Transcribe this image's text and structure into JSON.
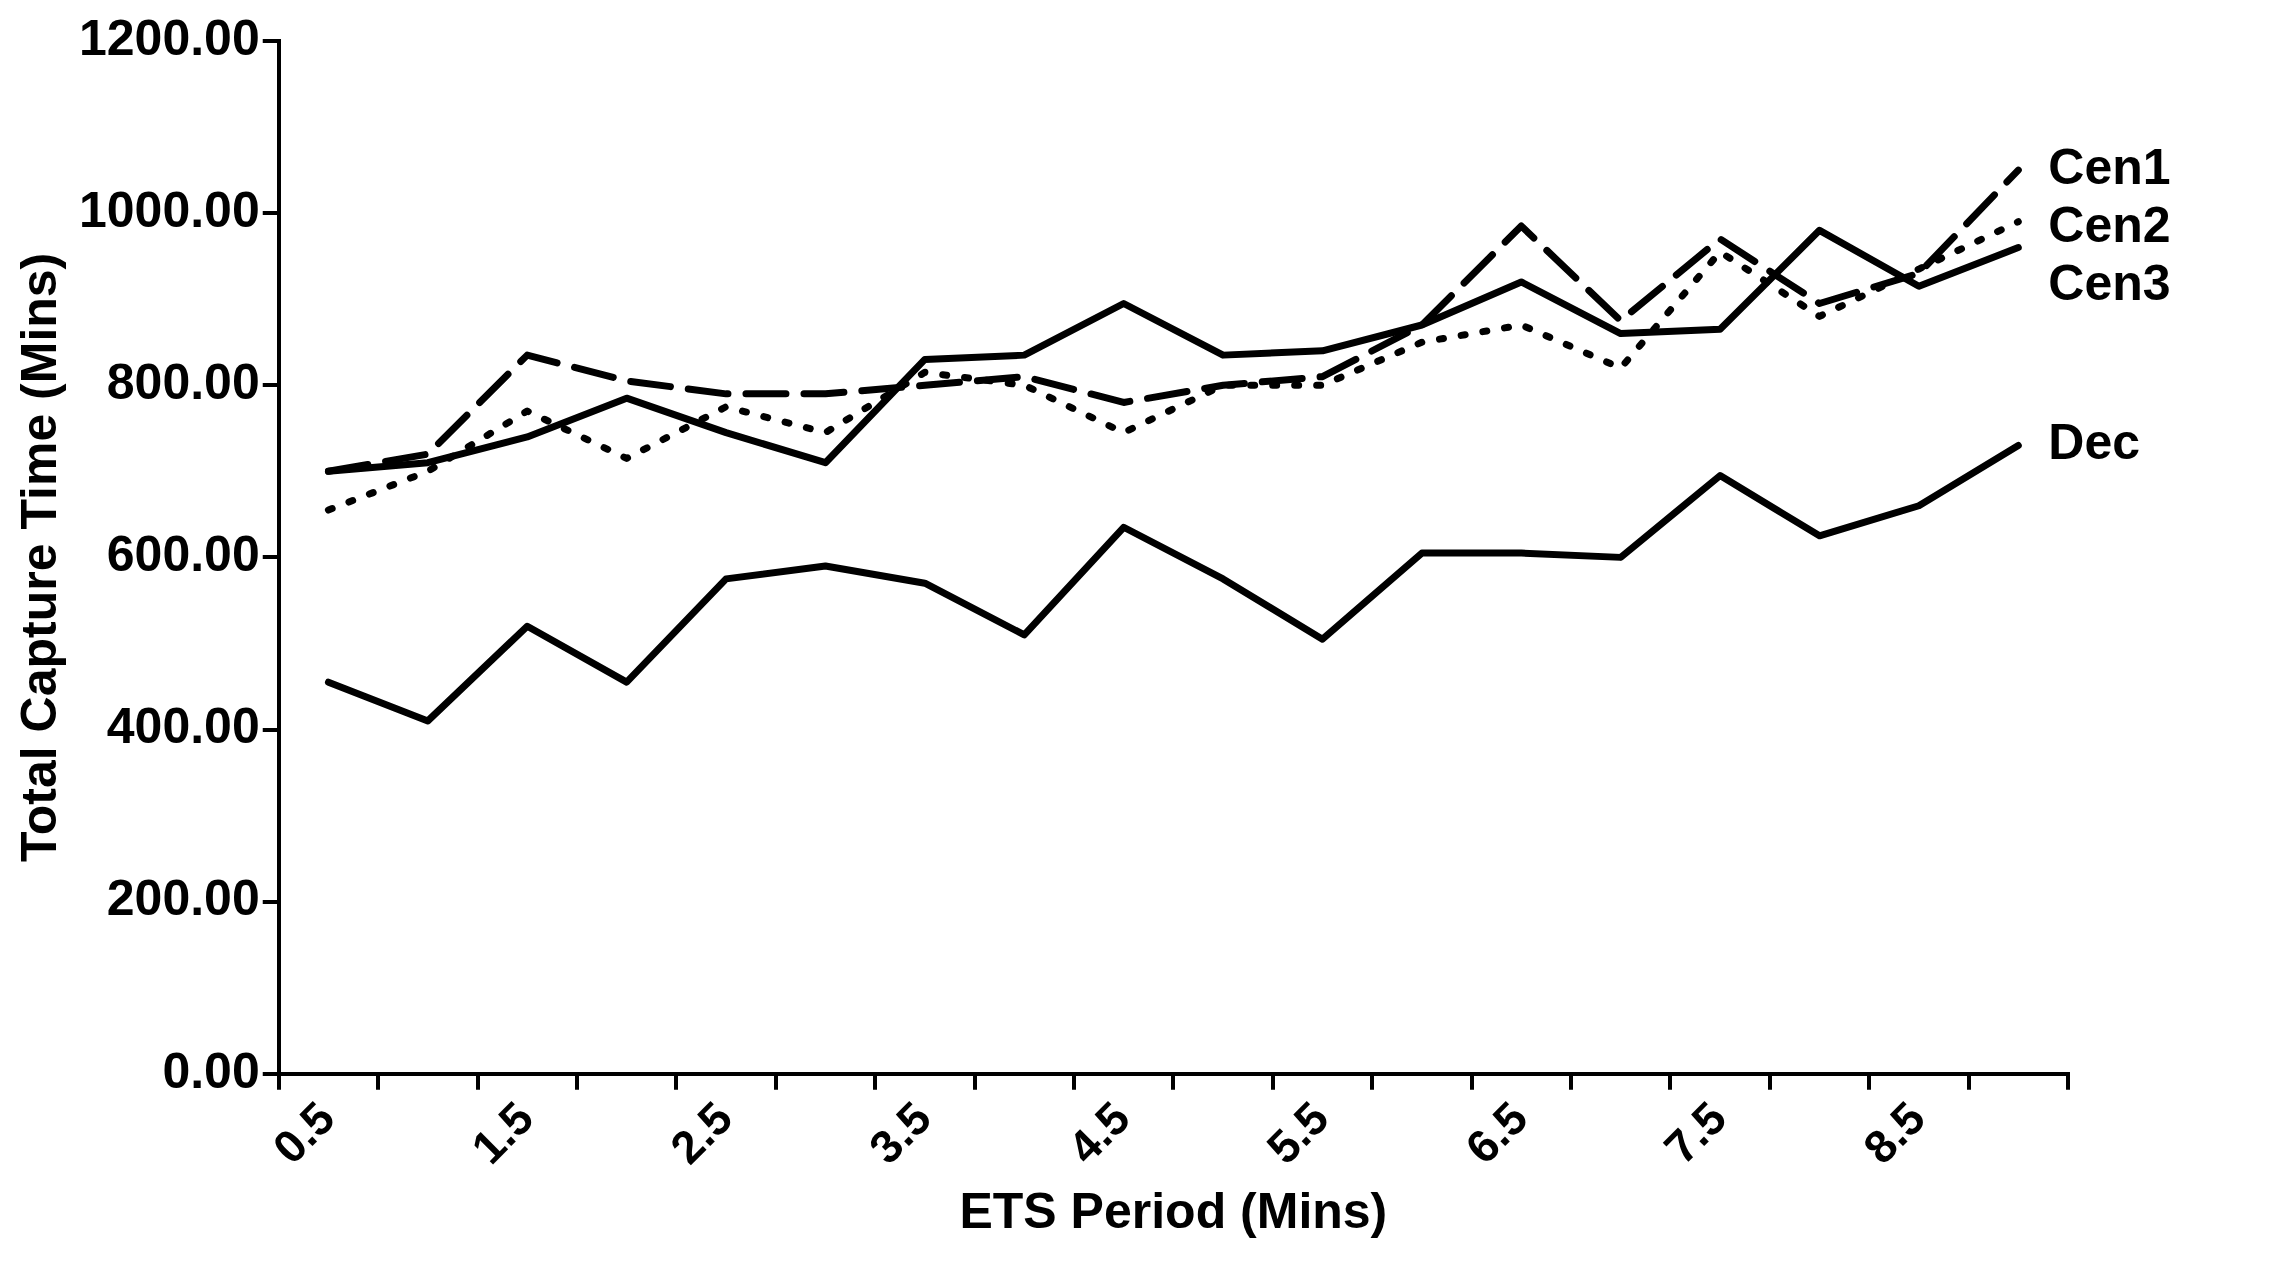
{
  "chart_data": {
    "type": "line",
    "xlabel": "ETS Period (Mins)",
    "ylabel": "Total Capture Time (Mins)",
    "categories": [
      "0.5",
      null,
      "1.5",
      null,
      "2.5",
      null,
      "3.5",
      null,
      "4.5",
      null,
      "5.5",
      null,
      "6.5",
      null,
      "7.5",
      null,
      "8.5",
      null
    ],
    "ylim": [
      0,
      1200
    ],
    "yticks": [
      {
        "value": 0,
        "label": "0.00"
      },
      {
        "value": 200,
        "label": "200.00"
      },
      {
        "value": 400,
        "label": "400.00"
      },
      {
        "value": 600,
        "label": "600.00"
      },
      {
        "value": 800,
        "label": "800.00"
      },
      {
        "value": 1000,
        "label": "1000.00"
      },
      {
        "value": 1200,
        "label": "1200.00"
      }
    ],
    "grid": false,
    "legend": false,
    "marker": "none",
    "series": [
      {
        "name": "Cen1",
        "color": "#000000",
        "line_style": "dashed",
        "values": [
          700,
          720,
          835,
          805,
          790,
          790,
          800,
          810,
          780,
          800,
          810,
          870,
          985,
          875,
          970,
          895,
          930,
          1050
        ]
      },
      {
        "name": "Cen3",
        "color": "#000000",
        "line_style": "solid",
        "values": [
          700,
          710,
          740,
          785,
          745,
          710,
          830,
          835,
          895,
          835,
          840,
          870,
          920,
          860,
          865,
          980,
          915,
          960
        ]
      },
      {
        "name": "Cen2",
        "color": "#000000",
        "line_style": "dotted",
        "values": [
          655,
          700,
          770,
          715,
          775,
          745,
          815,
          800,
          745,
          800,
          800,
          850,
          870,
          820,
          955,
          880,
          935,
          990
        ]
      },
      {
        "name": "Dec",
        "color": "#000000",
        "line_style": "solid",
        "values": [
          455,
          410,
          520,
          455,
          575,
          590,
          570,
          510,
          635,
          575,
          505,
          605,
          605,
          600,
          695,
          625,
          660,
          730
        ]
      }
    ]
  }
}
